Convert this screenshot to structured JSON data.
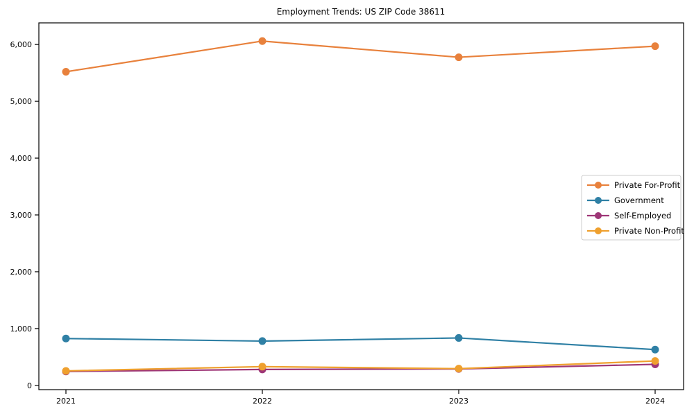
{
  "chart_data": {
    "type": "line",
    "title": "Employment Trends: US ZIP Code 38611",
    "xlabel": "",
    "ylabel": "",
    "x": [
      2021,
      2022,
      2023,
      2024
    ],
    "x_tick_labels": [
      "2021",
      "2022",
      "2023",
      "2024"
    ],
    "yticks": [
      0,
      1000,
      2000,
      3000,
      4000,
      5000,
      6000
    ],
    "ylim": [
      -75,
      6380
    ],
    "grid": false,
    "legend_position": "upper-right-inside",
    "background_color": "#ffffff",
    "axis_color": "#000000",
    "legend_border_color": "#cccccc",
    "series": [
      {
        "name": "Private For-Profit",
        "color": "#e8813c",
        "values": [
          5520,
          6060,
          5775,
          5970
        ]
      },
      {
        "name": "Government",
        "color": "#2f80a5",
        "values": [
          825,
          780,
          835,
          630
        ]
      },
      {
        "name": "Self-Employed",
        "color": "#9e3677",
        "values": [
          245,
          280,
          290,
          370
        ]
      },
      {
        "name": "Private Non-Profit",
        "color": "#efa02e",
        "values": [
          255,
          330,
          295,
          430
        ]
      }
    ]
  }
}
